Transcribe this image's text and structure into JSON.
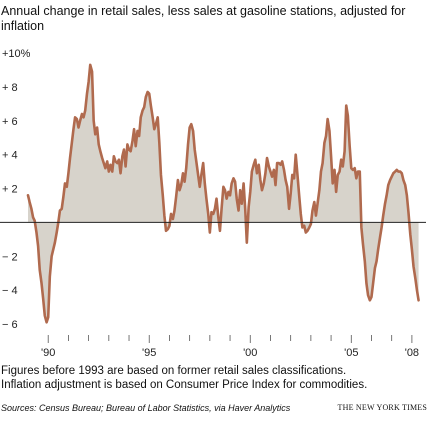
{
  "chart_data": {
    "type": "area",
    "title": "Annual change in retail sales, less sales at gasoline stations, adjusted for inflation",
    "xlabel": "",
    "ylabel": "",
    "xlim": [
      1989.0,
      2008.5
    ],
    "ylim": [
      -6,
      10
    ],
    "y_ticks": [
      {
        "value": 10,
        "label": "+10%"
      },
      {
        "value": 8,
        "label": "+ 8"
      },
      {
        "value": 6,
        "label": "+ 6"
      },
      {
        "value": 4,
        "label": "+ 4"
      },
      {
        "value": 2,
        "label": "+ 2"
      },
      {
        "value": -2,
        "label": "− 2"
      },
      {
        "value": -4,
        "label": "− 4"
      },
      {
        "value": -6,
        "label": "− 6"
      }
    ],
    "x_labels": [
      {
        "value": 1990,
        "label": "'90"
      },
      {
        "value": 1995,
        "label": "'95"
      },
      {
        "value": 2000,
        "label": "'00"
      },
      {
        "value": 2005,
        "label": "'05"
      },
      {
        "value": 2008,
        "label": "'08"
      }
    ],
    "x_minor_ticks": [
      1990,
      1991,
      1992,
      1993,
      1994,
      1995,
      1996,
      1997,
      1998,
      1999,
      2000,
      2001,
      2002,
      2003,
      2004,
      2005,
      2006,
      2007,
      2008
    ],
    "grid": false,
    "colors": {
      "line": "#b06a4e",
      "fill": "#d7d3cb",
      "zero_line": "#222222"
    },
    "series": [
      {
        "x": [
          1989.0,
          1989.08,
          1989.17,
          1989.25,
          1989.33,
          1989.42,
          1989.5,
          1989.58,
          1989.67,
          1989.75,
          1989.83,
          1989.92,
          1990.0,
          1990.08,
          1990.17,
          1990.25,
          1990.33,
          1990.42,
          1990.5,
          1990.58,
          1990.67,
          1990.75,
          1990.83,
          1990.92,
          1991.0,
          1991.08,
          1991.17,
          1991.25,
          1991.33,
          1991.42,
          1991.5,
          1991.58,
          1991.67,
          1991.75,
          1991.83,
          1991.92,
          1992.0,
          1992.08,
          1992.17,
          1992.25,
          1992.33,
          1992.42,
          1992.5,
          1992.58,
          1992.67,
          1992.75,
          1992.83,
          1992.92,
          1993.0,
          1993.08,
          1993.17,
          1993.25,
          1993.33,
          1993.42,
          1993.5,
          1993.58,
          1993.67,
          1993.75,
          1993.83,
          1993.92,
          1994.0,
          1994.08,
          1994.17,
          1994.25,
          1994.33,
          1994.42,
          1994.5,
          1994.58,
          1994.67,
          1994.75,
          1994.83,
          1994.92,
          1995.0,
          1995.08,
          1995.17,
          1995.25,
          1995.33,
          1995.42,
          1995.5,
          1995.58,
          1995.67,
          1995.75,
          1995.83,
          1995.92,
          1996.0,
          1996.08,
          1996.17,
          1996.25,
          1996.33,
          1996.42,
          1996.5,
          1996.58,
          1996.67,
          1996.75,
          1996.83,
          1996.92,
          1997.0,
          1997.08,
          1997.17,
          1997.25,
          1997.33,
          1997.42,
          1997.5,
          1997.58,
          1997.67,
          1997.75,
          1997.83,
          1997.92,
          1998.0,
          1998.08,
          1998.17,
          1998.25,
          1998.33,
          1998.42,
          1998.5,
          1998.58,
          1998.67,
          1998.75,
          1998.83,
          1998.92,
          1999.0,
          1999.08,
          1999.17,
          1999.25,
          1999.33,
          1999.42,
          1999.5,
          1999.58,
          1999.67,
          1999.75,
          1999.83,
          1999.92,
          2000.0,
          2000.08,
          2000.17,
          2000.25,
          2000.33,
          2000.42,
          2000.5,
          2000.58,
          2000.67,
          2000.75,
          2000.83,
          2000.92,
          2001.0,
          2001.08,
          2001.17,
          2001.25,
          2001.33,
          2001.42,
          2001.5,
          2001.58,
          2001.67,
          2001.75,
          2001.83,
          2001.92,
          2002.0,
          2002.08,
          2002.17,
          2002.25,
          2002.33,
          2002.42,
          2002.5,
          2002.58,
          2002.67,
          2002.75,
          2002.83,
          2002.92,
          2003.0,
          2003.08,
          2003.17,
          2003.25,
          2003.33,
          2003.42,
          2003.5,
          2003.58,
          2003.67,
          2003.75,
          2003.83,
          2003.92,
          2004.0,
          2004.08,
          2004.17,
          2004.25,
          2004.33,
          2004.42,
          2004.5,
          2004.58,
          2004.67,
          2004.75,
          2004.83,
          2004.92,
          2005.0,
          2005.08,
          2005.17,
          2005.25,
          2005.33,
          2005.42,
          2005.5,
          2005.58,
          2005.67,
          2005.75,
          2005.83,
          2005.92,
          2006.0,
          2006.08,
          2006.17,
          2006.25,
          2006.33,
          2006.42,
          2006.5,
          2006.58,
          2006.67,
          2006.75,
          2006.83,
          2006.92,
          2007.0,
          2007.08,
          2007.17,
          2007.25,
          2007.33,
          2007.42,
          2007.5,
          2007.58,
          2007.67,
          2007.75,
          2007.83,
          2007.92,
          2008.0,
          2008.08,
          2008.17,
          2008.25,
          2008.33
        ],
        "values": [
          1.6,
          1.2,
          0.8,
          0.3,
          0.1,
          -0.6,
          -1.4,
          -2.8,
          -3.6,
          -4.5,
          -5.5,
          -5.9,
          -5.6,
          -3.2,
          -2.0,
          -1.6,
          -1.2,
          -0.6,
          0.0,
          0.7,
          0.8,
          1.5,
          2.3,
          2.1,
          2.9,
          3.8,
          4.7,
          5.5,
          6.2,
          6.1,
          5.6,
          6.0,
          6.4,
          6.2,
          6.6,
          7.6,
          8.3,
          9.3,
          8.9,
          6.0,
          5.2,
          5.6,
          4.6,
          4.2,
          3.8,
          3.5,
          3.2,
          3.6,
          3.0,
          3.4,
          3.0,
          3.9,
          3.6,
          3.5,
          3.7,
          2.9,
          3.9,
          4.3,
          3.3,
          4.6,
          4.3,
          4.2,
          4.8,
          5.5,
          4.5,
          5.4,
          5.1,
          6.2,
          6.6,
          6.8,
          7.4,
          7.7,
          7.6,
          6.9,
          6.2,
          5.5,
          5.8,
          6.2,
          4.7,
          2.8,
          1.6,
          0.4,
          -0.5,
          -0.4,
          -0.2,
          0.5,
          0.2,
          0.7,
          1.5,
          2.5,
          1.9,
          2.2,
          2.9,
          2.4,
          3.2,
          4.6,
          5.6,
          5.8,
          5.4,
          4.3,
          3.6,
          2.8,
          2.1,
          2.8,
          3.5,
          2.3,
          1.4,
          0.5,
          -0.6,
          0.6,
          0.5,
          0.8,
          1.4,
          0.3,
          -0.5,
          0.8,
          2.1,
          1.9,
          1.4,
          1.8,
          1.6,
          2.3,
          2.6,
          2.4,
          1.4,
          0.7,
          1.9,
          1.1,
          2.3,
          0.8,
          -1.2,
          0.9,
          1.8,
          3.0,
          3.4,
          3.7,
          2.9,
          3.4,
          2.5,
          1.9,
          2.3,
          2.9,
          3.8,
          3.3,
          3.0,
          2.7,
          3.1,
          2.2,
          3.5,
          3.5,
          3.4,
          3.6,
          3.1,
          2.5,
          2.1,
          0.8,
          1.7,
          2.8,
          2.6,
          4.0,
          2.9,
          1.6,
          0.5,
          -0.3,
          -0.2,
          -0.6,
          -0.5,
          -0.3,
          -0.1,
          0.7,
          1.2,
          0.4,
          1.1,
          1.9,
          3.0,
          3.5,
          4.7,
          5.1,
          6.1,
          5.4,
          3.9,
          2.3,
          3.1,
          1.8,
          2.8,
          3.0,
          3.7,
          3.3,
          4.2,
          6.9,
          6.3,
          4.5,
          3.2,
          3.1,
          3.2,
          2.6,
          3.0,
          3.0,
          -0.3,
          -1.3,
          -2.3,
          -3.6,
          -4.3,
          -4.6,
          -4.4,
          -3.6,
          -2.7,
          -2.3,
          -1.6,
          -0.9,
          -0.3,
          0.4,
          1.1,
          1.6,
          2.2,
          2.5,
          2.7,
          2.9,
          3.0,
          3.1,
          3.0,
          3.0,
          2.9,
          2.5,
          2.2,
          1.6,
          0.6,
          -0.7,
          -1.6,
          -2.6,
          -3.3,
          -4.0,
          -4.6
        ]
      }
    ]
  },
  "notes": {
    "line1": "Figures before 1993 are based on former retail sales classifications.",
    "line2": "Inflation adjustment is based on Consumer Price Index for commodities."
  },
  "source": "Sources: Census Bureau; Bureau of Labor Statistics, via Haver Analytics",
  "credit": "THE NEW YORK TIMES"
}
